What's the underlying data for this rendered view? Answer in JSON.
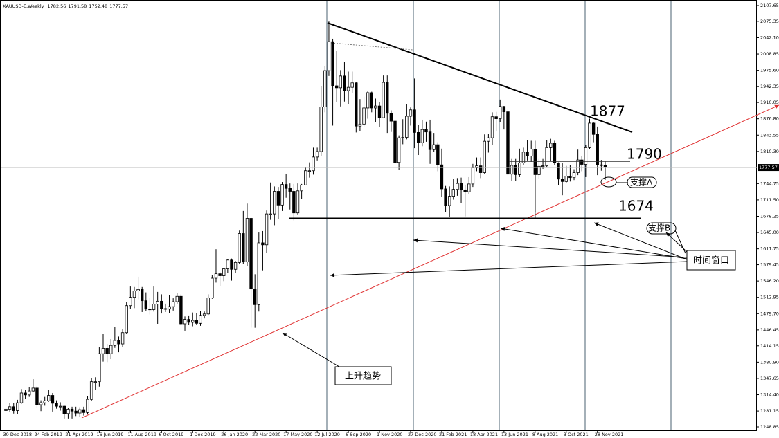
{
  "chart_data": {
    "type": "candlestick",
    "symbol_label": "XAUUSD-E,Weekly",
    "categories": [
      "30 Dec 2018",
      null,
      null,
      null,
      null,
      null,
      null,
      null,
      "24 Feb 2019",
      null,
      null,
      null,
      null,
      null,
      null,
      null,
      "21 Apr 2019",
      null,
      null,
      null,
      null,
      null,
      null,
      null,
      "16 Jun 2019",
      null,
      null,
      null,
      null,
      null,
      null,
      null,
      "11 Aug 2019",
      null,
      null,
      null,
      null,
      null,
      null,
      null,
      "6 Oct 2019",
      null,
      null,
      null,
      null,
      null,
      null,
      null,
      "1 Dec 2019",
      null,
      null,
      null,
      null,
      null,
      null,
      null,
      "26 Jan 2020",
      null,
      null,
      null,
      null,
      null,
      null,
      null,
      "22 Mar 2020",
      null,
      null,
      null,
      null,
      null,
      null,
      null,
      "17 May 2020",
      null,
      null,
      null,
      null,
      null,
      null,
      null,
      "12 Jul 2020",
      null,
      null,
      null,
      null,
      null,
      null,
      null,
      "6 Sep 2020",
      null,
      null,
      null,
      null,
      null,
      null,
      null,
      "1 Nov 2020",
      null,
      null,
      null,
      null,
      null,
      null,
      null,
      "27 Dec 2020",
      null,
      null,
      null,
      null,
      null,
      null,
      null,
      "21 Feb 2021",
      null,
      null,
      null,
      null,
      null,
      null,
      null,
      "18 Apr 2021",
      null,
      null,
      null,
      null,
      null,
      null,
      null,
      "13 Jun 2021",
      null,
      null,
      null,
      null,
      null,
      null,
      null,
      "8 Aug 2021",
      null,
      null,
      null,
      null,
      null,
      null,
      null,
      "3 Oct 2021",
      null,
      null,
      null,
      null,
      null,
      null,
      null,
      "28 Nov 2021",
      null,
      null
    ],
    "ohlc": [
      [
        1282,
        1298,
        1276,
        1285
      ],
      [
        1285,
        1298,
        1280,
        1290
      ],
      [
        1290,
        1298,
        1276,
        1282
      ],
      [
        1282,
        1304,
        1275,
        1298
      ],
      [
        1298,
        1326,
        1296,
        1318
      ],
      [
        1318,
        1324,
        1306,
        1314
      ],
      [
        1314,
        1330,
        1310,
        1322
      ],
      [
        1322,
        1346,
        1320,
        1328
      ],
      [
        1328,
        1332,
        1288,
        1294
      ],
      [
        1294,
        1303,
        1281,
        1298
      ],
      [
        1298,
        1310,
        1292,
        1302
      ],
      [
        1302,
        1324,
        1300,
        1313
      ],
      [
        1313,
        1318,
        1280,
        1297
      ],
      [
        1297,
        1303,
        1286,
        1291
      ],
      [
        1291,
        1299,
        1282,
        1291
      ],
      [
        1291,
        1292,
        1266,
        1276
      ],
      [
        1276,
        1288,
        1266,
        1285
      ],
      [
        1285,
        1290,
        1266,
        1281
      ],
      [
        1281,
        1290,
        1271,
        1277
      ],
      [
        1277,
        1289,
        1270,
        1284
      ],
      [
        1284,
        1290,
        1272,
        1278
      ],
      [
        1278,
        1311,
        1274,
        1305
      ],
      [
        1305,
        1348,
        1302,
        1341
      ],
      [
        1341,
        1350,
        1325,
        1341
      ],
      [
        1341,
        1411,
        1331,
        1398
      ],
      [
        1398,
        1439,
        1382,
        1409
      ],
      [
        1409,
        1418,
        1381,
        1398
      ],
      [
        1398,
        1428,
        1387,
        1415
      ],
      [
        1415,
        1452,
        1410,
        1425
      ],
      [
        1425,
        1433,
        1401,
        1418
      ],
      [
        1418,
        1448,
        1412,
        1441
      ],
      [
        1441,
        1503,
        1438,
        1496
      ],
      [
        1496,
        1535,
        1490,
        1513
      ],
      [
        1513,
        1534,
        1491,
        1526
      ],
      [
        1526,
        1555,
        1509,
        1529
      ],
      [
        1529,
        1534,
        1483,
        1506
      ],
      [
        1506,
        1523,
        1485,
        1489
      ],
      [
        1489,
        1512,
        1478,
        1488
      ],
      [
        1488,
        1535,
        1484,
        1499
      ],
      [
        1499,
        1524,
        1459,
        1505
      ],
      [
        1505,
        1519,
        1480,
        1490
      ],
      [
        1490,
        1500,
        1483,
        1489
      ],
      [
        1489,
        1517,
        1481,
        1494
      ],
      [
        1494,
        1511,
        1486,
        1504
      ],
      [
        1504,
        1522,
        1500,
        1515
      ],
      [
        1515,
        1519,
        1456,
        1459
      ],
      [
        1459,
        1474,
        1445,
        1468
      ],
      [
        1468,
        1476,
        1457,
        1462
      ],
      [
        1462,
        1482,
        1454,
        1466
      ],
      [
        1466,
        1481,
        1457,
        1460
      ],
      [
        1460,
        1485,
        1455,
        1476
      ],
      [
        1476,
        1484,
        1470,
        1479
      ],
      [
        1479,
        1519,
        1477,
        1512
      ],
      [
        1512,
        1558,
        1510,
        1552
      ],
      [
        1552,
        1611,
        1543,
        1561
      ],
      [
        1561,
        1564,
        1536,
        1557
      ],
      [
        1557,
        1572,
        1546,
        1571
      ],
      [
        1571,
        1591,
        1563,
        1589
      ],
      [
        1589,
        1592,
        1547,
        1570
      ],
      [
        1570,
        1587,
        1562,
        1584
      ],
      [
        1584,
        1649,
        1581,
        1643
      ],
      [
        1643,
        1689,
        1581,
        1585
      ],
      [
        1585,
        1704,
        1576,
        1674
      ],
      [
        1674,
        1675,
        1451,
        1530
      ],
      [
        1530,
        1560,
        1451,
        1498
      ],
      [
        1498,
        1645,
        1484,
        1624
      ],
      [
        1624,
        1648,
        1568,
        1620
      ],
      [
        1620,
        1690,
        1604,
        1683
      ],
      [
        1683,
        1747,
        1671,
        1683
      ],
      [
        1683,
        1739,
        1660,
        1729
      ],
      [
        1729,
        1738,
        1672,
        1701
      ],
      [
        1701,
        1748,
        1689,
        1743
      ],
      [
        1743,
        1765,
        1716,
        1735
      ],
      [
        1735,
        1745,
        1692,
        1729
      ],
      [
        1729,
        1744,
        1670,
        1685
      ],
      [
        1685,
        1745,
        1682,
        1730
      ],
      [
        1730,
        1744,
        1714,
        1742
      ],
      [
        1742,
        1779,
        1741,
        1771
      ],
      [
        1771,
        1788,
        1757,
        1771
      ],
      [
        1771,
        1818,
        1763,
        1799
      ],
      [
        1799,
        1818,
        1792,
        1810
      ],
      [
        1810,
        1944,
        1801,
        1901
      ],
      [
        1901,
        1984,
        1890,
        1975
      ],
      [
        1975,
        2075,
        1964,
        2034
      ],
      [
        2034,
        2040,
        1863,
        1944
      ],
      [
        1944,
        2015,
        1911,
        1940
      ],
      [
        1940,
        1976,
        1902,
        1964
      ],
      [
        1964,
        1992,
        1912,
        1934
      ],
      [
        1934,
        1973,
        1907,
        1941
      ],
      [
        1941,
        1973,
        1930,
        1950
      ],
      [
        1950,
        1951,
        1849,
        1862
      ],
      [
        1862,
        1917,
        1851,
        1866
      ],
      [
        1866,
        1922,
        1861,
        1899
      ],
      [
        1899,
        1933,
        1877,
        1930
      ],
      [
        1930,
        1932,
        1890,
        1899
      ],
      [
        1899,
        1918,
        1870,
        1903
      ],
      [
        1903,
        1911,
        1860,
        1879
      ],
      [
        1879,
        1965,
        1878,
        1951
      ],
      [
        1951,
        1965,
        1848,
        1888
      ],
      [
        1888,
        1894,
        1850,
        1872
      ],
      [
        1872,
        1875,
        1765,
        1788
      ],
      [
        1788,
        1843,
        1773,
        1838
      ],
      [
        1838,
        1876,
        1825,
        1839
      ],
      [
        1839,
        1906,
        1835,
        1882
      ],
      [
        1882,
        1900,
        1863,
        1895
      ],
      [
        1895,
        1959,
        1817,
        1849
      ],
      [
        1849,
        1864,
        1803,
        1828
      ],
      [
        1828,
        1875,
        1821,
        1855
      ],
      [
        1855,
        1871,
        1830,
        1850
      ],
      [
        1850,
        1875,
        1785,
        1814
      ],
      [
        1814,
        1848,
        1809,
        1824
      ],
      [
        1824,
        1829,
        1770,
        1783
      ],
      [
        1783,
        1816,
        1717,
        1734
      ],
      [
        1734,
        1740,
        1687,
        1700
      ],
      [
        1700,
        1739,
        1677,
        1719
      ],
      [
        1719,
        1755,
        1712,
        1733
      ],
      [
        1733,
        1756,
        1720,
        1745
      ],
      [
        1745,
        1757,
        1705,
        1732
      ],
      [
        1732,
        1742,
        1678,
        1728
      ],
      [
        1728,
        1758,
        1723,
        1744
      ],
      [
        1744,
        1785,
        1738,
        1777
      ],
      [
        1777,
        1798,
        1770,
        1781
      ],
      [
        1781,
        1798,
        1756,
        1767
      ],
      [
        1767,
        1845,
        1765,
        1831
      ],
      [
        1831,
        1846,
        1808,
        1838
      ],
      [
        1838,
        1890,
        1823,
        1881
      ],
      [
        1881,
        1891,
        1852,
        1877
      ],
      [
        1877,
        1916,
        1870,
        1902
      ],
      [
        1902,
        1903,
        1855,
        1891
      ],
      [
        1891,
        1896,
        1761,
        1764
      ],
      [
        1764,
        1795,
        1750,
        1782
      ],
      [
        1782,
        1795,
        1750,
        1763
      ],
      [
        1763,
        1816,
        1758,
        1787
      ],
      [
        1787,
        1818,
        1782,
        1809
      ],
      [
        1809,
        1834,
        1792,
        1801
      ],
      [
        1801,
        1832,
        1789,
        1815
      ],
      [
        1815,
        1832,
        1687,
        1763
      ],
      [
        1763,
        1795,
        1754,
        1780
      ],
      [
        1780,
        1795,
        1775,
        1781
      ],
      [
        1781,
        1834,
        1777,
        1818
      ],
      [
        1818,
        1836,
        1790,
        1827
      ],
      [
        1827,
        1832,
        1782,
        1787
      ],
      [
        1787,
        1788,
        1742,
        1754
      ],
      [
        1754,
        1787,
        1721,
        1749
      ],
      [
        1749,
        1781,
        1746,
        1760
      ],
      [
        1760,
        1782,
        1749,
        1757
      ],
      [
        1757,
        1774,
        1752,
        1767
      ],
      [
        1767,
        1814,
        1762,
        1793
      ],
      [
        1793,
        1801,
        1770,
        1784
      ],
      [
        1784,
        1823,
        1758,
        1818
      ],
      [
        1818,
        1877,
        1815,
        1868
      ],
      [
        1868,
        1870,
        1829,
        1845
      ],
      [
        1845,
        1861,
        1762,
        1783
      ],
      [
        1783,
        1793,
        1771,
        1783
      ],
      [
        1782.56,
        1791.58,
        1752.48,
        1777.57
      ]
    ],
    "ylim": [
      1240.4,
      2118.9
    ],
    "yticks": [
      2107.65,
      2075.35,
      {
        "value": 2042.1,
        "label": "2042.10"
      },
      2008.85,
      {
        "value": 1975.6,
        "label": "1975.60"
      },
      1942.35,
      1910.05,
      {
        "value": 1876.8,
        "label": "1876.80"
      },
      1843.55,
      {
        "value": 1810.3,
        "label": "1810.30"
      },
      1744.75,
      {
        "value": 1711.5,
        "label": "1711.50"
      },
      1678.25,
      {
        "value": 1645,
        "label": "1645.00"
      },
      1611.75,
      1579.45,
      {
        "value": 1546.2,
        "label": "1546.20"
      },
      1512.95,
      {
        "value": 1479.7,
        "label": "1479.70"
      },
      1446.45,
      1414.15,
      {
        "value": 1380.9,
        "label": "1380.90"
      },
      1347.65,
      {
        "value": 1314.4,
        "label": "1314.40"
      },
      1281.15,
      1248.85
    ],
    "levels": [
      1877,
      1790,
      1674
    ],
    "annotations": {
      "support_a": "支撑A",
      "support_b": "支撑B",
      "time_window": "时间窗口",
      "uptrend": "上升趋势"
    }
  }
}
